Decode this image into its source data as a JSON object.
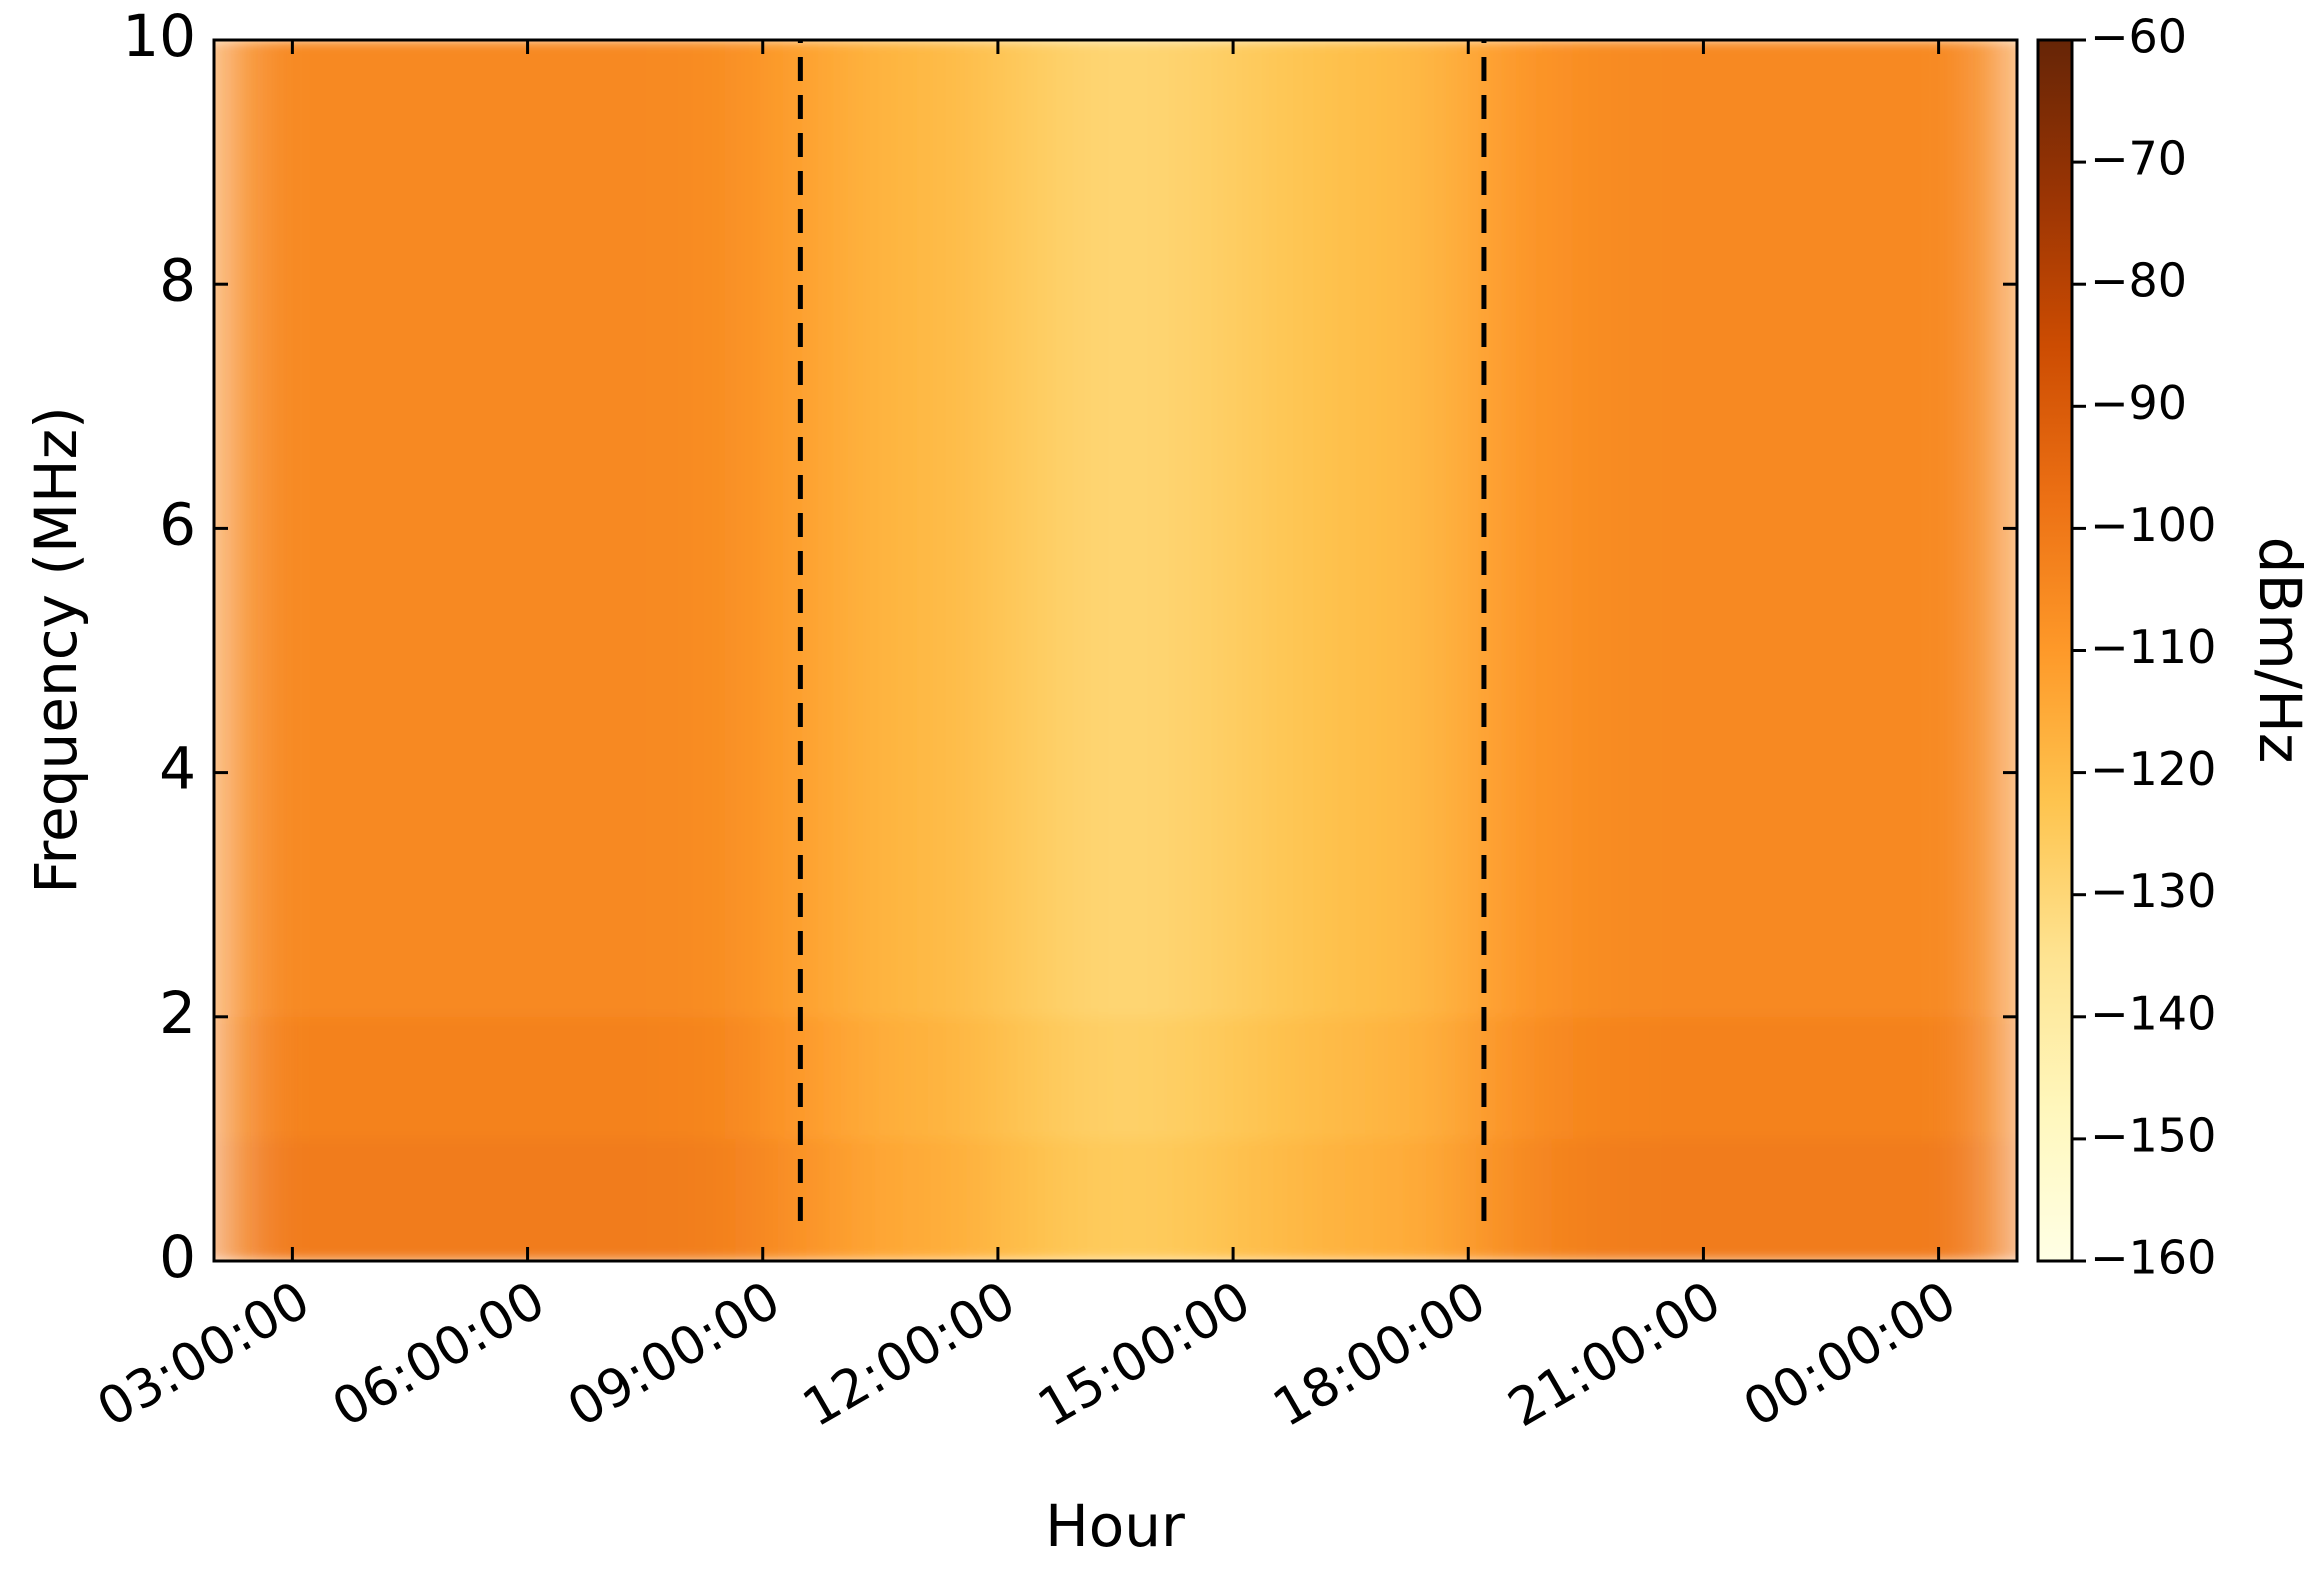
{
  "chart_data": {
    "type": "heatmap",
    "xlabel": "Hour",
    "ylabel": "Frequency (MHz)",
    "colorbar_label": "dBm/Hz",
    "x": [
      2.5,
      3.5,
      4.5,
      5.5,
      6.5,
      7.5,
      8.5,
      9.5,
      10.5,
      11.5,
      12.5,
      13.5,
      14.5,
      15.5,
      16.5,
      17.5,
      18.5,
      19.5,
      20.5,
      21.5,
      22.5,
      23.5,
      24.5
    ],
    "y": [
      0.5,
      1.5,
      2.5,
      3.5,
      4.5,
      5.5,
      6.5,
      7.5,
      8.5,
      9.5
    ],
    "values": [
      [
        -101,
        -101,
        -101,
        -101,
        -101,
        -101,
        -102,
        -108,
        -114,
        -116,
        -122,
        -126,
        -124,
        -120,
        -117,
        -115,
        -106,
        -102,
        -101,
        -101,
        -101,
        -101,
        -101
      ],
      [
        -103,
        -103,
        -103,
        -103,
        -103,
        -103,
        -104,
        -110,
        -116,
        -118,
        -124,
        -128,
        -126,
        -122,
        -119,
        -117,
        -108,
        -104,
        -103,
        -103,
        -103,
        -103,
        -103
      ],
      [
        -105,
        -105,
        -105,
        -105,
        -105,
        -105,
        -106,
        -112,
        -118,
        -120,
        -126,
        -130,
        -128,
        -124,
        -121,
        -119,
        -110,
        -106,
        -105,
        -105,
        -105,
        -105,
        -105
      ],
      [
        -105,
        -105,
        -105,
        -105,
        -105,
        -105,
        -106,
        -112,
        -118,
        -120,
        -126,
        -130,
        -128,
        -124,
        -121,
        -119,
        -110,
        -106,
        -105,
        -105,
        -105,
        -105,
        -105
      ],
      [
        -105,
        -105,
        -105,
        -105,
        -105,
        -105,
        -106,
        -112,
        -118,
        -120,
        -126,
        -130,
        -128,
        -124,
        -121,
        -119,
        -110,
        -106,
        -105,
        -105,
        -105,
        -105,
        -105
      ],
      [
        -105,
        -105,
        -105,
        -105,
        -105,
        -105,
        -106,
        -112,
        -118,
        -120,
        -126,
        -130,
        -128,
        -124,
        -121,
        -119,
        -110,
        -106,
        -105,
        -105,
        -105,
        -105,
        -105
      ],
      [
        -105,
        -105,
        -105,
        -105,
        -105,
        -105,
        -106,
        -112,
        -118,
        -120,
        -126,
        -130,
        -128,
        -124,
        -121,
        -119,
        -110,
        -106,
        -105,
        -105,
        -105,
        -105,
        -105
      ],
      [
        -105,
        -105,
        -105,
        -105,
        -105,
        -105,
        -106,
        -112,
        -118,
        -120,
        -126,
        -130,
        -128,
        -124,
        -121,
        -119,
        -110,
        -106,
        -105,
        -105,
        -105,
        -105,
        -105
      ],
      [
        -105,
        -105,
        -105,
        -105,
        -105,
        -105,
        -106,
        -112,
        -118,
        -120,
        -126,
        -130,
        -128,
        -124,
        -121,
        -119,
        -110,
        -106,
        -105,
        -105,
        -105,
        -105,
        -105
      ],
      [
        -105,
        -105,
        -105,
        -105,
        -105,
        -105,
        -106,
        -112,
        -118,
        -120,
        -126,
        -130,
        -128,
        -124,
        -121,
        -119,
        -110,
        -106,
        -105,
        -105,
        -105,
        -105,
        -105
      ]
    ],
    "xlim": [
      2,
      25
    ],
    "xticks": [
      {
        "value": 3,
        "label": "03:00:00"
      },
      {
        "value": 6,
        "label": "06:00:00"
      },
      {
        "value": 9,
        "label": "09:00:00"
      },
      {
        "value": 12,
        "label": "12:00:00"
      },
      {
        "value": 15,
        "label": "15:00:00"
      },
      {
        "value": 18,
        "label": "18:00:00"
      },
      {
        "value": 21,
        "label": "21:00:00"
      },
      {
        "value": 24,
        "label": "00:00:00"
      }
    ],
    "ylim": [
      0,
      10
    ],
    "yticks": [
      0,
      2,
      4,
      6,
      8,
      10
    ],
    "vlines": [
      9.48,
      18.2
    ],
    "clim": [
      -160,
      -60
    ],
    "cticks": [
      {
        "value": -160,
        "label": "−160"
      },
      {
        "value": -150,
        "label": "−150"
      },
      {
        "value": -140,
        "label": "−140"
      },
      {
        "value": -130,
        "label": "−130"
      },
      {
        "value": -120,
        "label": "−120"
      },
      {
        "value": -110,
        "label": "−110"
      },
      {
        "value": -100,
        "label": "−100"
      },
      {
        "value": -90,
        "label": "−90"
      },
      {
        "value": -80,
        "label": "−80"
      },
      {
        "value": -70,
        "label": "−70"
      },
      {
        "value": -60,
        "label": "−60"
      }
    ],
    "colormap": [
      "#ffffe5",
      "#fff7bc",
      "#fee391",
      "#fec44f",
      "#fe9929",
      "#ec7014",
      "#cc4c02",
      "#993404",
      "#662506"
    ]
  }
}
